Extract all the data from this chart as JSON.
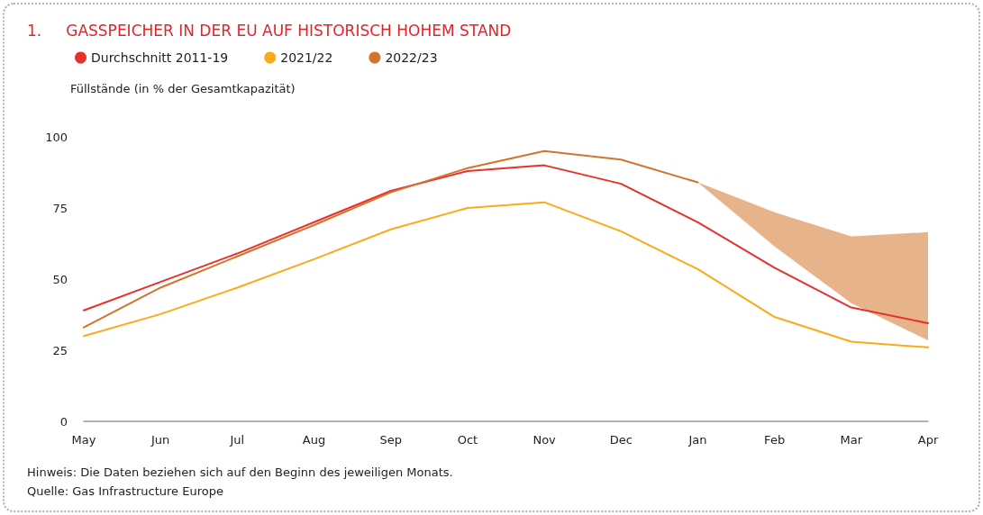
{
  "chart_data": {
    "type": "line",
    "title": "1.     GASSPEICHER IN DER EU AUF HISTORISCH HOHEM STAND",
    "ylabel": "Füllstände (in % der Gesamtkapazität)",
    "categories": [
      "May",
      "Jun",
      "Jul",
      "Aug",
      "Sep",
      "Oct",
      "Nov",
      "Dec",
      "Jan",
      "Feb",
      "Mar",
      "Apr"
    ],
    "series": [
      {
        "name": "Durchschnitt 2011-19",
        "color": "#e8302c",
        "values": [
          39,
          49,
          59,
          70,
          81,
          88,
          90,
          83.5,
          70,
          54,
          40,
          34.5
        ]
      },
      {
        "name": "2021/22",
        "color": "#fbaa19",
        "values": [
          30,
          37.7,
          47,
          57,
          67.5,
          75,
          77,
          66.8,
          53.5,
          36.7,
          28,
          26
        ]
      },
      {
        "name": "2022/23",
        "color": "#d4742c",
        "values": [
          33,
          47,
          58,
          69,
          80.5,
          89,
          95,
          92,
          84,
          null,
          null,
          null
        ],
        "lower": [
          null,
          null,
          null,
          null,
          null,
          null,
          null,
          null,
          84,
          61.5,
          41.5,
          28.5
        ],
        "upper": [
          null,
          null,
          null,
          null,
          null,
          null,
          null,
          null,
          84,
          73.5,
          65,
          66.5
        ]
      }
    ],
    "ylim": [
      0,
      100
    ],
    "yticks": [
      0,
      25,
      50,
      75,
      100
    ],
    "grid": false,
    "legend": "top left",
    "marker": "none",
    "line_style": "solid",
    "annotations": [
      "Hinweis: Die Daten beziehen sich auf den Beginn des jeweiligen Monats.",
      "Quelle: Gas Infrastructure Europe"
    ]
  }
}
